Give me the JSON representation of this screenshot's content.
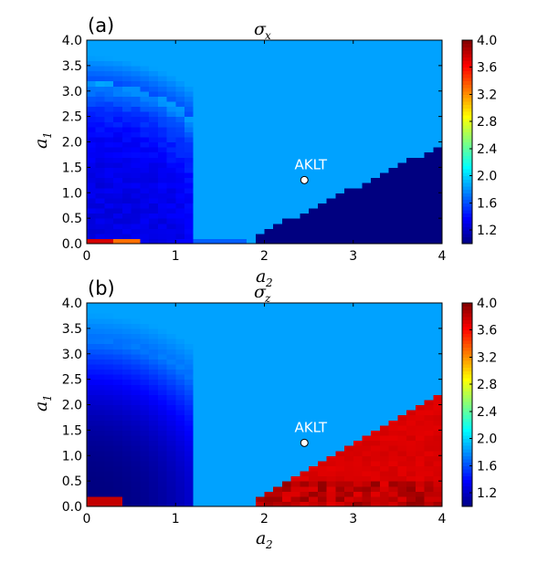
{
  "chart_data": [
    {
      "type": "heatmap",
      "panel_label": "(a)",
      "title": "σ",
      "title_sub": "x",
      "xlabel": "a",
      "xlabel_sub": "2",
      "ylabel": "a",
      "ylabel_sub": "1",
      "xlim": [
        0,
        4
      ],
      "ylim": [
        0,
        4
      ],
      "xticks": [
        "0",
        "1",
        "2",
        "3",
        "4"
      ],
      "yticks": [
        "0.0",
        "0.5",
        "1.0",
        "1.5",
        "2.0",
        "2.5",
        "3.0",
        "3.5",
        "4.0"
      ],
      "colorbar": {
        "range": [
          1.0,
          4.0
        ],
        "ticks": [
          "1.2",
          "1.6",
          "2.0",
          "2.4",
          "2.8",
          "3.2",
          "3.6",
          "4.0"
        ],
        "colormap": "jet"
      },
      "background_value": 1.85,
      "regions": [
        {
          "name": "upper-right ordered phase",
          "value": 1.0
        },
        {
          "name": "left gradient region",
          "value_range": [
            1.25,
            1.8
          ]
        },
        {
          "name": "bottom-left corner",
          "value_range": [
            3.3,
            3.8
          ]
        }
      ],
      "annotation": {
        "text": "AKLT",
        "x": 2.45,
        "y": 1.25
      }
    },
    {
      "type": "heatmap",
      "panel_label": "(b)",
      "title": "σ",
      "title_sub": "z",
      "xlabel": "a",
      "xlabel_sub": "2",
      "ylabel": "a",
      "ylabel_sub": "1",
      "xlim": [
        0,
        4
      ],
      "ylim": [
        0,
        4
      ],
      "xticks": [
        "0",
        "1",
        "2",
        "3",
        "4"
      ],
      "yticks": [
        "0.0",
        "0.5",
        "1.0",
        "1.5",
        "2.0",
        "2.5",
        "3.0",
        "3.5",
        "4.0"
      ],
      "colorbar": {
        "range": [
          1.0,
          4.0
        ],
        "ticks": [
          "1.2",
          "1.6",
          "2.0",
          "2.4",
          "2.8",
          "3.2",
          "3.6",
          "4.0"
        ],
        "colormap": "jet"
      },
      "background_value": 1.85,
      "regions": [
        {
          "name": "upper-right ordered phase",
          "value_range": [
            3.6,
            4.0
          ]
        },
        {
          "name": "left gradient region",
          "value_range": [
            1.0,
            1.8
          ]
        },
        {
          "name": "bottom-left corner",
          "value_range": [
            3.7,
            3.9
          ]
        }
      ],
      "annotation": {
        "text": "AKLT",
        "x": 2.45,
        "y": 1.25
      }
    }
  ]
}
